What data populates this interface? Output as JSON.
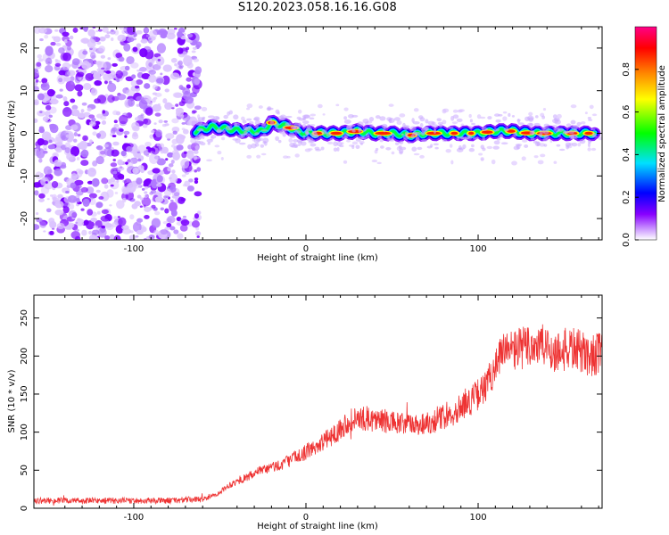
{
  "title": "S120.2023.058.16.16.G08",
  "chart_data": [
    {
      "type": "heatmap",
      "title": "S120.2023.058.16.16.G08",
      "xlabel": "Height of straight line (km)",
      "ylabel": "Frequency (Hz)",
      "xlim": [
        -158,
        172
      ],
      "ylim": [
        -25,
        25
      ],
      "x_ticks": [
        -100,
        0,
        100
      ],
      "y_ticks": [
        -20,
        -10,
        0,
        10,
        20
      ],
      "x_tick_labels": [
        "-100",
        "0",
        "100"
      ],
      "y_tick_labels": [
        "-20",
        "-10",
        "0",
        "10",
        "20"
      ],
      "colorbar": {
        "label": "Normalized spectral amplitude",
        "range": [
          0,
          1
        ],
        "ticks": [
          0.0,
          0.2,
          0.4,
          0.6,
          0.8
        ],
        "tick_labels": [
          "0.0",
          "0.2",
          "0.4",
          "0.6",
          "0.8"
        ],
        "colormap": [
          "#ffffff",
          "#8800ff",
          "#0000ff",
          "#00e0ff",
          "#00ff00",
          "#ffff00",
          "#ff8800",
          "#ff0000",
          "#ff0088"
        ]
      },
      "noise_region_x": [
        -158,
        -64
      ],
      "signal_track": {
        "x": [
          -64,
          -55,
          -45,
          -35,
          -25,
          -20,
          -15,
          -10,
          -5,
          0,
          10,
          20,
          30,
          40,
          50,
          60,
          70,
          80,
          90,
          100,
          110,
          120,
          130,
          140,
          150,
          160,
          168
        ],
        "frequency": [
          0.5,
          1.5,
          1.0,
          0.5,
          0.5,
          2.5,
          2.0,
          1.5,
          0.5,
          0.0,
          0.0,
          0.0,
          0.5,
          0.0,
          0.0,
          -0.5,
          0.0,
          0.0,
          0.0,
          0.0,
          0.5,
          0.5,
          0.0,
          0.0,
          0.0,
          0.0,
          0.0
        ]
      }
    },
    {
      "type": "line",
      "xlabel": "Height of straight line (km)",
      "ylabel": "SNR (10 * v/v)",
      "xlim": [
        -158,
        172
      ],
      "ylim": [
        0,
        280
      ],
      "x_ticks": [
        -100,
        0,
        100
      ],
      "y_ticks": [
        0,
        50,
        100,
        150,
        200,
        250
      ],
      "x_tick_labels": [
        "-100",
        "0",
        "100"
      ],
      "y_tick_labels": [
        "0",
        "50",
        "100",
        "150",
        "200",
        "250"
      ],
      "color": "#ee3333",
      "trend": {
        "x": [
          -158,
          -140,
          -120,
          -100,
          -80,
          -60,
          -52,
          -45,
          -35,
          -25,
          -15,
          -5,
          5,
          15,
          25,
          35,
          45,
          55,
          65,
          75,
          85,
          95,
          105,
          110,
          115,
          125,
          135,
          145,
          155,
          165,
          172
        ],
        "y": [
          10,
          10,
          10,
          10,
          10,
          12,
          18,
          30,
          40,
          50,
          57,
          68,
          80,
          95,
          115,
          118,
          115,
          110,
          110,
          115,
          125,
          140,
          160,
          190,
          205,
          210,
          215,
          205,
          210,
          200,
          205
        ]
      }
    }
  ]
}
